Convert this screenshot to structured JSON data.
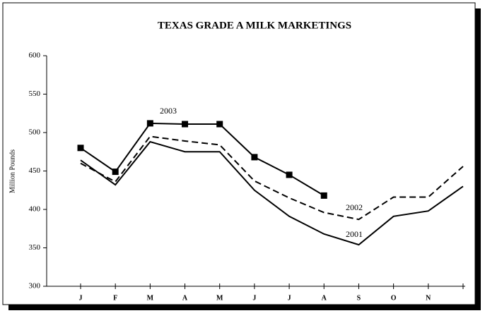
{
  "chart_data": {
    "type": "line",
    "title": "TEXAS GRADE A MILK MARKETINGS",
    "y_label": "Million Pounds",
    "categories": [
      "J",
      "F",
      "M",
      "A",
      "M",
      "J",
      "J",
      "A",
      "S",
      "O",
      "N",
      null
    ],
    "series": [
      {
        "name": "2003",
        "color": "#000000",
        "marker": "square",
        "dashed": false,
        "values": [
          480,
          449,
          512,
          511,
          511,
          468,
          445,
          418,
          null,
          null,
          null,
          null
        ]
      },
      {
        "name": "2002",
        "color": "#000000",
        "dashed": true,
        "values": [
          460,
          436,
          495,
          489,
          484,
          437,
          415,
          396,
          387,
          416,
          416,
          456
        ]
      },
      {
        "name": "2001",
        "color": "#000000",
        "dashed": false,
        "values": [
          464,
          432,
          488,
          475,
          475,
          425,
          391,
          368,
          354,
          391,
          398,
          430
        ]
      }
    ],
    "ylim": [
      300,
      600
    ],
    "yticks": [
      300,
      350,
      400,
      450,
      500,
      550,
      600
    ],
    "grid": false
  }
}
